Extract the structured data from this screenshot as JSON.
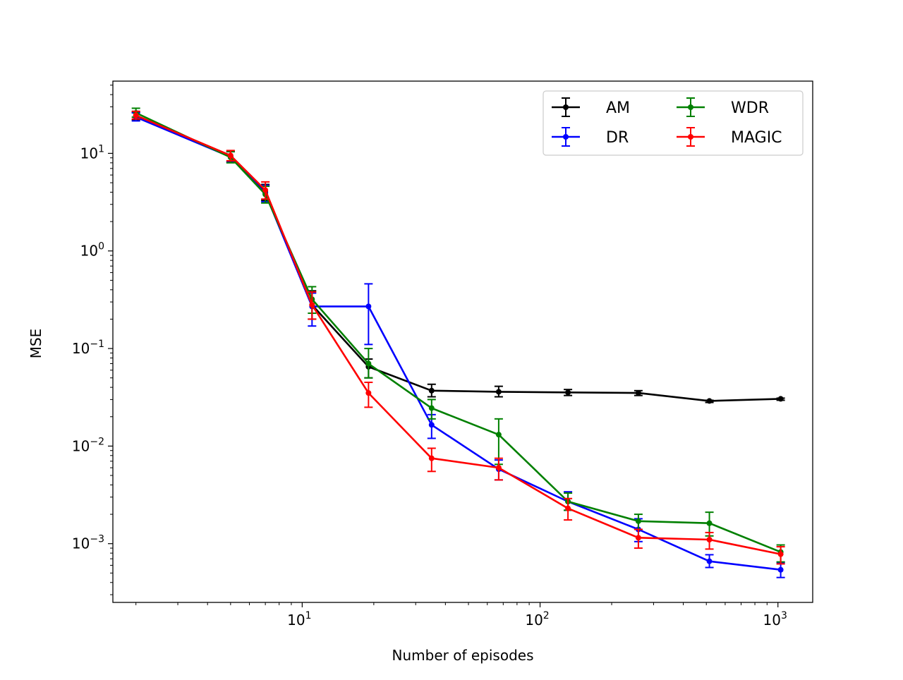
{
  "chart_data": {
    "type": "line",
    "title": "",
    "xlabel": "Number of episodes",
    "ylabel": "MSE",
    "xscale": "log",
    "yscale": "log",
    "xlim": [
      1.6,
      1400
    ],
    "ylim": [
      0.00025,
      55
    ],
    "x_ticks": [
      {
        "value": 10,
        "base": "10",
        "exp": "1"
      },
      {
        "value": 100,
        "base": "10",
        "exp": "2"
      },
      {
        "value": 1000,
        "base": "10",
        "exp": "3"
      }
    ],
    "y_ticks": [
      {
        "value": 10,
        "base": "10",
        "exp": "1"
      },
      {
        "value": 1,
        "base": "10",
        "exp": "0"
      },
      {
        "value": 0.1,
        "base": "10",
        "exp": "−1"
      },
      {
        "value": 0.01,
        "base": "10",
        "exp": "−2"
      },
      {
        "value": 0.001,
        "base": "10",
        "exp": "−3"
      }
    ],
    "grid": false,
    "legend": {
      "position": "top-right",
      "columns": 2
    },
    "x": [
      2,
      5,
      7,
      11,
      19,
      35,
      67,
      131,
      259,
      515,
      1027
    ],
    "series": [
      {
        "name": "AM",
        "color": "#000000",
        "values": [
          24,
          9.3,
          4.0,
          0.28,
          0.065,
          0.037,
          0.036,
          0.0355,
          0.035,
          0.029,
          0.0305
        ],
        "err_low": [
          22,
          8.2,
          3.3,
          0.2,
          0.05,
          0.032,
          0.032,
          0.033,
          0.033,
          0.028,
          0.0295
        ],
        "err_high": [
          26.5,
          10.5,
          4.8,
          0.39,
          0.078,
          0.043,
          0.041,
          0.038,
          0.037,
          0.0295,
          0.031
        ]
      },
      {
        "name": "DR",
        "color": "#0000ff",
        "values": [
          23.5,
          9.2,
          3.9,
          0.27,
          0.27,
          0.0165,
          0.0058,
          0.0027,
          0.0014,
          0.00066,
          0.00054
        ],
        "err_low": [
          21.5,
          8.1,
          3.2,
          0.17,
          0.11,
          0.012,
          0.0045,
          0.0022,
          0.00105,
          0.00057,
          0.00045
        ],
        "err_high": [
          26,
          10.4,
          4.7,
          0.37,
          0.46,
          0.021,
          0.0072,
          0.0034,
          0.0018,
          0.00077,
          0.00064
        ]
      },
      {
        "name": "WDR",
        "color": "#008000",
        "values": [
          26,
          9.1,
          3.8,
          0.32,
          0.07,
          0.0245,
          0.0131,
          0.0027,
          0.0017,
          0.00162,
          0.00082
        ],
        "err_low": [
          23.5,
          8.0,
          3.1,
          0.23,
          0.05,
          0.019,
          0.0065,
          0.0022,
          0.0014,
          0.0012,
          0.00065
        ],
        "err_high": [
          29,
          10.4,
          4.6,
          0.43,
          0.1,
          0.03,
          0.019,
          0.0033,
          0.002,
          0.0021,
          0.00097
        ]
      },
      {
        "name": "MAGIC",
        "color": "#ff0000",
        "values": [
          24.5,
          9.5,
          4.2,
          0.28,
          0.035,
          0.0075,
          0.006,
          0.0023,
          0.00115,
          0.0011,
          0.00078
        ],
        "err_low": [
          22.5,
          8.4,
          3.4,
          0.2,
          0.025,
          0.0055,
          0.0045,
          0.00175,
          0.0009,
          0.00088,
          0.00062
        ],
        "err_high": [
          27,
          10.7,
          5.1,
          0.38,
          0.045,
          0.0095,
          0.0075,
          0.0029,
          0.0014,
          0.0013,
          0.00093
        ]
      }
    ]
  }
}
